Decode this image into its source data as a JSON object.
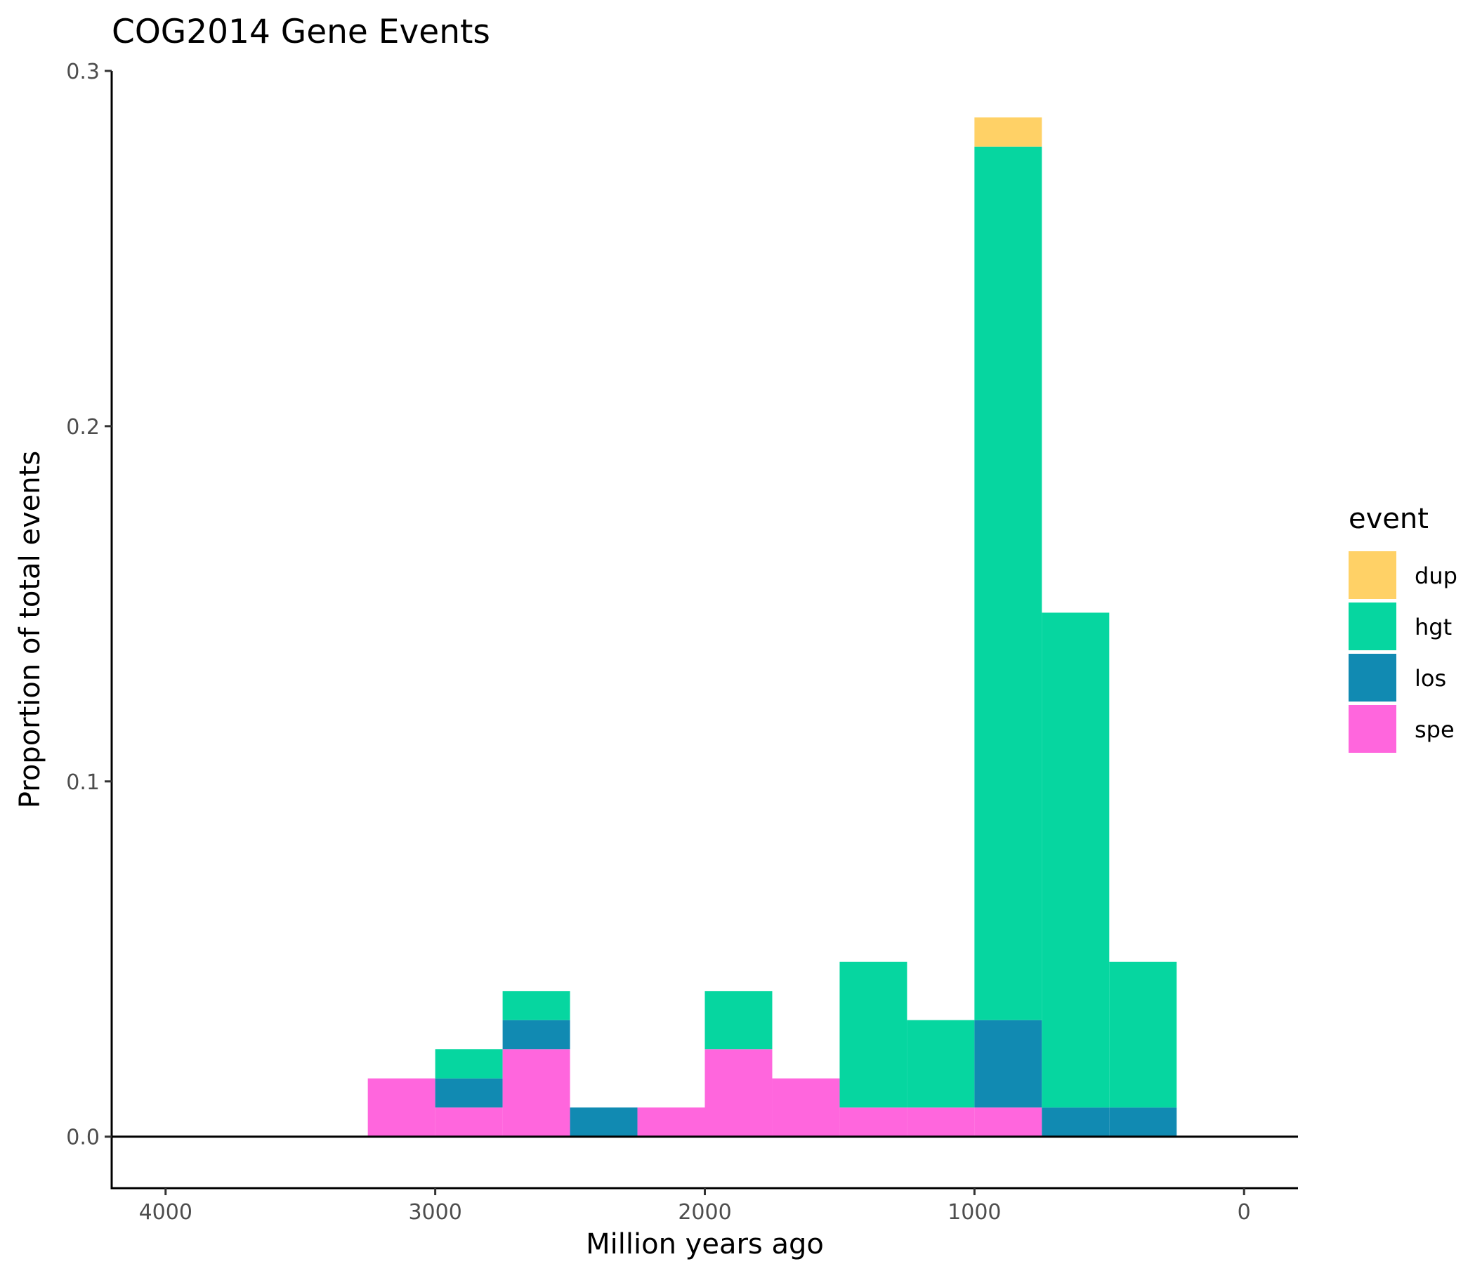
{
  "chart_data": {
    "type": "bar",
    "title": "COG2014 Gene Events",
    "xlabel": "Million years ago",
    "ylabel": "Proportion of total events",
    "x_reversed": true,
    "xlim": [
      4200,
      -200
    ],
    "ylim": [
      -0.0145,
      0.3
    ],
    "bin_width": 250,
    "xticks": [
      4000,
      3000,
      2000,
      1000,
      0
    ],
    "xtick_labels": [
      "4000",
      "3000",
      "2000",
      "1000",
      "0"
    ],
    "yticks": [
      0.0,
      0.1,
      0.2,
      0.3
    ],
    "ytick_labels": [
      "0.0",
      "0.1",
      "0.2",
      "0.3"
    ],
    "stacked": true,
    "grid": false,
    "legend_title": "event",
    "legend_position": "right",
    "bin_centers": [
      3125,
      2875,
      2625,
      2375,
      2125,
      1875,
      1625,
      1375,
      1125,
      875,
      625,
      375
    ],
    "series": [
      {
        "name": "spe",
        "color": "#FF66DD",
        "values": [
          0.0164,
          0.0082,
          0.0246,
          0.0,
          0.0082,
          0.0246,
          0.0164,
          0.0082,
          0.0082,
          0.0082,
          0.0,
          0.0
        ]
      },
      {
        "name": "los",
        "color": "#118AB2",
        "values": [
          0.0,
          0.0082,
          0.0082,
          0.0082,
          0.0,
          0.0,
          0.0,
          0.0,
          0.0,
          0.0246,
          0.0082,
          0.0082
        ]
      },
      {
        "name": "hgt",
        "color": "#06D6A0",
        "values": [
          0.0,
          0.0082,
          0.0082,
          0.0,
          0.0,
          0.0164,
          0.0,
          0.041,
          0.0246,
          0.2459,
          0.1393,
          0.041
        ]
      },
      {
        "name": "dup",
        "color": "#FFD166",
        "values": [
          0.0,
          0.0,
          0.0,
          0.0,
          0.0,
          0.0,
          0.0,
          0.0,
          0.0,
          0.0082,
          0.0,
          0.0
        ]
      }
    ],
    "legend_order": [
      "dup",
      "hgt",
      "los",
      "spe"
    ]
  }
}
